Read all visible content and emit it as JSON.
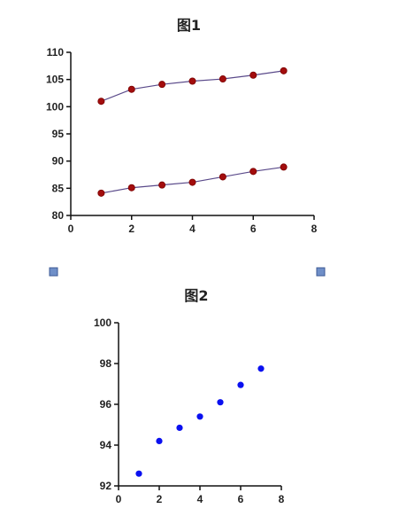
{
  "colors": {
    "line_series": "#5a4a8a",
    "marker_fill": "#a30d0d",
    "marker_stroke": "#7a0000",
    "scatter_points": "#0a10f0",
    "handle_fill": "#6f8fc8",
    "handle_stroke": "#3c5a96"
  },
  "handles": {
    "left_icon": "resize-handle",
    "right_icon": "resize-handle"
  },
  "chart_data": [
    {
      "type": "line",
      "title": "图1",
      "xlabel": "",
      "ylabel": "",
      "xlim": [
        0,
        8
      ],
      "ylim": [
        80,
        110
      ],
      "xticks": [
        "0",
        "2",
        "4",
        "6",
        "8"
      ],
      "yticks": [
        "80",
        "85",
        "90",
        "95",
        "100",
        "105",
        "110"
      ],
      "grid": false,
      "series": [
        {
          "x": [
            1,
            2,
            3,
            4,
            5,
            6,
            7
          ],
          "values": [
            101.0,
            103.2,
            104.1,
            104.7,
            105.1,
            105.8,
            106.6
          ]
        },
        {
          "x": [
            1,
            2,
            3,
            4,
            5,
            6,
            7
          ],
          "values": [
            84.1,
            85.1,
            85.6,
            86.1,
            87.1,
            88.1,
            88.9
          ]
        }
      ]
    },
    {
      "type": "scatter",
      "title": "图2",
      "xlabel": "",
      "ylabel": "",
      "xlim": [
        0,
        8
      ],
      "ylim": [
        92,
        100
      ],
      "xticks": [
        "0",
        "2",
        "4",
        "6",
        "8"
      ],
      "yticks": [
        "92",
        "94",
        "96",
        "98",
        "100"
      ],
      "grid": false,
      "series": [
        {
          "x": [
            1,
            2,
            3,
            4,
            5,
            6,
            7
          ],
          "values": [
            92.6,
            94.2,
            94.85,
            95.4,
            96.1,
            96.95,
            97.75
          ]
        }
      ]
    }
  ]
}
